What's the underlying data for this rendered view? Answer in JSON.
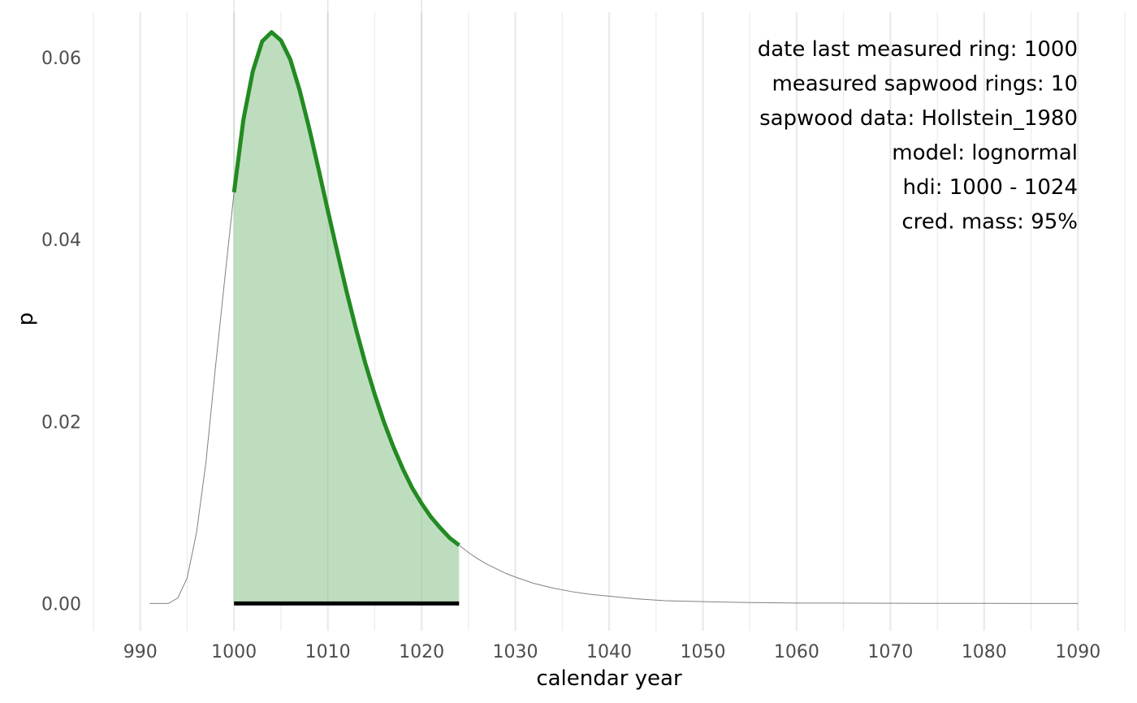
{
  "chart_data": {
    "type": "area",
    "xlabel": "calendar year",
    "ylabel": "p",
    "xlim": [
      985,
      1095
    ],
    "ylim": [
      -0.003,
      0.065
    ],
    "x_ticks": [
      990,
      1000,
      1010,
      1020,
      1030,
      1040,
      1050,
      1060,
      1070,
      1080,
      1090
    ],
    "y_ticks": [
      0.0,
      0.02,
      0.04,
      0.06
    ],
    "y_tick_labels": [
      "0.00",
      "0.02",
      "0.04",
      "0.06"
    ],
    "grid": true,
    "annotation_lines": [
      "date last measured ring: 1000",
      "measured sapwood rings: 10",
      "sapwood data: Hollstein_1980",
      "model: lognormal",
      "hdi: 1000 - 1024",
      "cred. mass: 95%"
    ],
    "hdi": [
      1000,
      1024
    ],
    "series": [
      {
        "x": [
          991,
          992,
          993,
          994,
          995,
          996,
          997,
          998,
          999,
          1000,
          1001,
          1002,
          1003,
          1004,
          1005,
          1006,
          1007,
          1008,
          1009,
          1010,
          1011,
          1012,
          1013,
          1014,
          1015,
          1016,
          1017,
          1018,
          1019,
          1020,
          1021,
          1022,
          1023,
          1024,
          1025,
          1026,
          1027,
          1028,
          1029,
          1030,
          1032,
          1034,
          1036,
          1038,
          1040,
          1043,
          1046,
          1050,
          1055,
          1060,
          1070,
          1080,
          1090
        ],
        "values": [
          0.0,
          0.0,
          0.0,
          0.0006,
          0.0028,
          0.0078,
          0.0155,
          0.0258,
          0.0356,
          0.0452,
          0.0532,
          0.0585,
          0.0618,
          0.0628,
          0.0619,
          0.0598,
          0.0564,
          0.0523,
          0.0478,
          0.0432,
          0.0387,
          0.0343,
          0.0302,
          0.0264,
          0.023,
          0.0199,
          0.0172,
          0.0148,
          0.0127,
          0.011,
          0.0095,
          0.0083,
          0.0072,
          0.0064,
          0.0056,
          0.0049,
          0.0043,
          0.0038,
          0.0033,
          0.0029,
          0.0022,
          0.0017,
          0.0013,
          0.001,
          0.0008,
          0.0005,
          0.0003,
          0.0002,
          0.0001,
          5e-05,
          2e-05,
          1e-05,
          0.0
        ]
      }
    ],
    "colors": {
      "density_line": "#808080",
      "hdi_line": "#228B22",
      "hdi_fill": "#BEDDBE",
      "hdi_bar": "#000000",
      "grid": "#EBEBEB"
    }
  }
}
